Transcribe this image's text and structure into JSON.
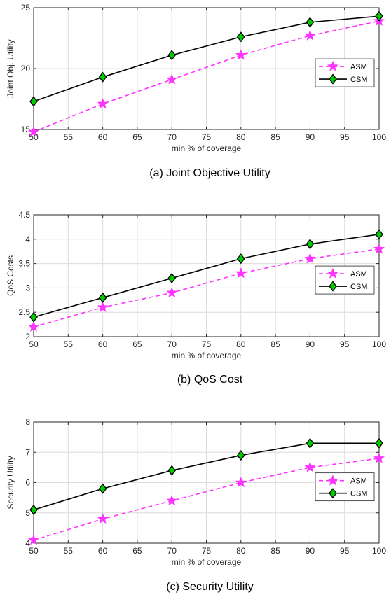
{
  "chart_data": [
    {
      "type": "line",
      "caption": "(a) Joint Objective Utility",
      "xlabel": "min % of coverage",
      "ylabel": "Joint Obj. Utility",
      "xlim": [
        50,
        100
      ],
      "ylim": [
        15,
        25
      ],
      "xticks": [
        50,
        55,
        60,
        65,
        70,
        75,
        80,
        85,
        90,
        95,
        100
      ],
      "yticks": [
        15,
        20,
        25
      ],
      "grid": true,
      "legend_position": "right",
      "x": [
        50,
        60,
        70,
        80,
        90,
        100
      ],
      "series": [
        {
          "name": "ASM",
          "values": [
            14.8,
            17.1,
            19.1,
            21.1,
            22.7,
            23.9
          ],
          "color": "#ff33ff",
          "line_style": "dashed",
          "marker": "star"
        },
        {
          "name": "CSM",
          "values": [
            17.3,
            19.3,
            21.1,
            22.6,
            23.8,
            24.3
          ],
          "color": "#000000",
          "line_style": "solid",
          "marker": "diamond",
          "marker_fill": "#00cc00"
        }
      ]
    },
    {
      "type": "line",
      "caption": "(b) QoS Cost",
      "xlabel": "min % of coverage",
      "ylabel": "QoS Costs",
      "xlim": [
        50,
        100
      ],
      "ylim": [
        2,
        4.5
      ],
      "xticks": [
        50,
        55,
        60,
        65,
        70,
        75,
        80,
        85,
        90,
        95,
        100
      ],
      "yticks": [
        2,
        2.5,
        3,
        3.5,
        4,
        4.5
      ],
      "grid": true,
      "legend_position": "right",
      "x": [
        50,
        60,
        70,
        80,
        90,
        100
      ],
      "series": [
        {
          "name": "ASM",
          "values": [
            2.2,
            2.6,
            2.9,
            3.3,
            3.6,
            3.8
          ],
          "color": "#ff33ff",
          "line_style": "dashed",
          "marker": "star"
        },
        {
          "name": "CSM",
          "values": [
            2.4,
            2.8,
            3.2,
            3.6,
            3.9,
            4.1
          ],
          "color": "#000000",
          "line_style": "solid",
          "marker": "diamond",
          "marker_fill": "#00cc00"
        }
      ]
    },
    {
      "type": "line",
      "caption": "(c) Security Utility",
      "xlabel": "min % of coverage",
      "ylabel": "Security Utility",
      "xlim": [
        50,
        100
      ],
      "ylim": [
        4,
        8
      ],
      "xticks": [
        50,
        55,
        60,
        65,
        70,
        75,
        80,
        85,
        90,
        95,
        100
      ],
      "yticks": [
        4,
        5,
        6,
        7,
        8
      ],
      "grid": true,
      "legend_position": "right",
      "x": [
        50,
        60,
        70,
        80,
        90,
        100
      ],
      "series": [
        {
          "name": "ASM",
          "values": [
            4.1,
            4.8,
            5.4,
            6.0,
            6.5,
            6.8
          ],
          "color": "#ff33ff",
          "line_style": "dashed",
          "marker": "star"
        },
        {
          "name": "CSM",
          "values": [
            5.1,
            5.8,
            6.4,
            6.9,
            7.3,
            7.3
          ],
          "color": "#000000",
          "line_style": "solid",
          "marker": "diamond",
          "marker_fill": "#00cc00"
        }
      ]
    }
  ]
}
